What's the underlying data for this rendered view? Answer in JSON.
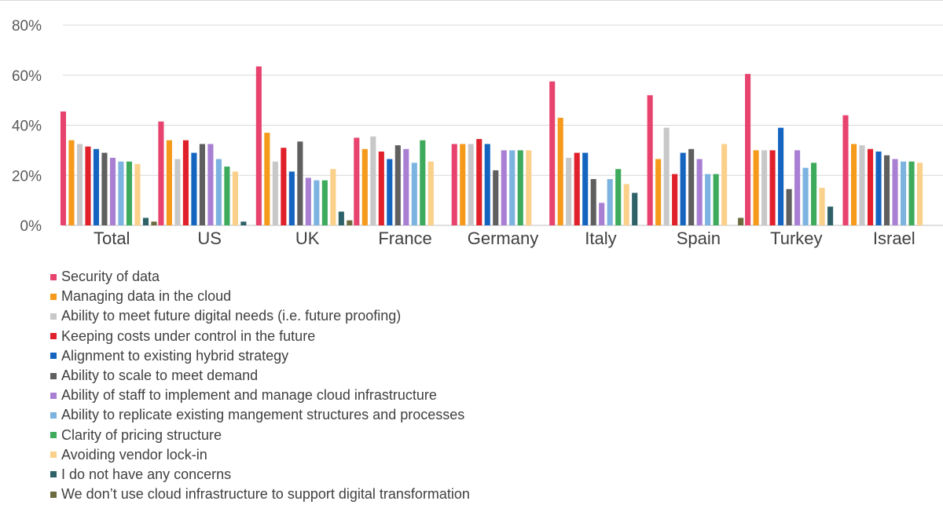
{
  "chart_data": {
    "type": "bar",
    "title": "",
    "xlabel": "",
    "ylabel": "",
    "ylim": [
      0,
      80
    ],
    "yticks": [
      "0%",
      "20%",
      "40%",
      "60%",
      "80%"
    ],
    "categories": [
      "Total",
      "US",
      "UK",
      "France",
      "Germany",
      "Italy",
      "Spain",
      "Turkey",
      "Israel"
    ],
    "legend_position": "bottom-left",
    "series": [
      {
        "name": "Security of data",
        "color": "#E8436F",
        "values": [
          45.5,
          41.5,
          63.5,
          35,
          32.5,
          57.5,
          52,
          60.5,
          44
        ]
      },
      {
        "name": "Managing data in the cloud",
        "color": "#F59A1B",
        "values": [
          34,
          34,
          37,
          30.5,
          32.5,
          43,
          26.5,
          30,
          32.5
        ]
      },
      {
        "name": "Ability to meet future digital needs (i.e. future proofing)",
        "color": "#C8C8C8",
        "values": [
          32.5,
          26.5,
          25.5,
          35.5,
          32.5,
          27,
          39,
          30,
          32
        ]
      },
      {
        "name": "Keeping costs under control in the future",
        "color": "#E0202A",
        "values": [
          31.5,
          34,
          31,
          29.5,
          34.5,
          29,
          20.5,
          30,
          30.5
        ]
      },
      {
        "name": "Alignment to existing hybrid strategy",
        "color": "#1565C0",
        "values": [
          30.5,
          29,
          21.5,
          26.5,
          32.5,
          29,
          29,
          39,
          29.5
        ]
      },
      {
        "name": "Ability to scale to meet demand",
        "color": "#5F5F5F",
        "values": [
          29,
          32.5,
          33.5,
          32,
          22,
          18.5,
          30.5,
          14.5,
          28
        ]
      },
      {
        "name": "Ability of staff to implement and manage cloud infrastructure",
        "color": "#A97FD4",
        "values": [
          27,
          32.5,
          19,
          30.5,
          30,
          9,
          26.5,
          30,
          26.5
        ]
      },
      {
        "name": "Ability to replicate existing mangement structures and processes",
        "color": "#7DB3E0",
        "values": [
          25.5,
          26.5,
          18,
          25,
          30,
          18.5,
          20.5,
          23,
          25.5
        ]
      },
      {
        "name": "Clarity of pricing structure",
        "color": "#3DAA5C",
        "values": [
          25.5,
          23.5,
          18,
          34,
          30,
          22.5,
          20.5,
          25,
          25.5
        ]
      },
      {
        "name": "Avoiding vendor lock-in",
        "color": "#FAD08A",
        "values": [
          24.5,
          21.5,
          22.5,
          25.5,
          30,
          16.5,
          32.5,
          15,
          25
        ]
      },
      {
        "name": "I do not have any concerns",
        "color": "#2E6268",
        "values": [
          3,
          1.5,
          5.5,
          0,
          0,
          13,
          0,
          7.5,
          0
        ]
      },
      {
        "name": "We don’t use cloud infrastructure to support digital transformation",
        "color": "#6B6B3F",
        "values": [
          1.5,
          0,
          2,
          0,
          0,
          0,
          3,
          0,
          0
        ]
      }
    ]
  }
}
